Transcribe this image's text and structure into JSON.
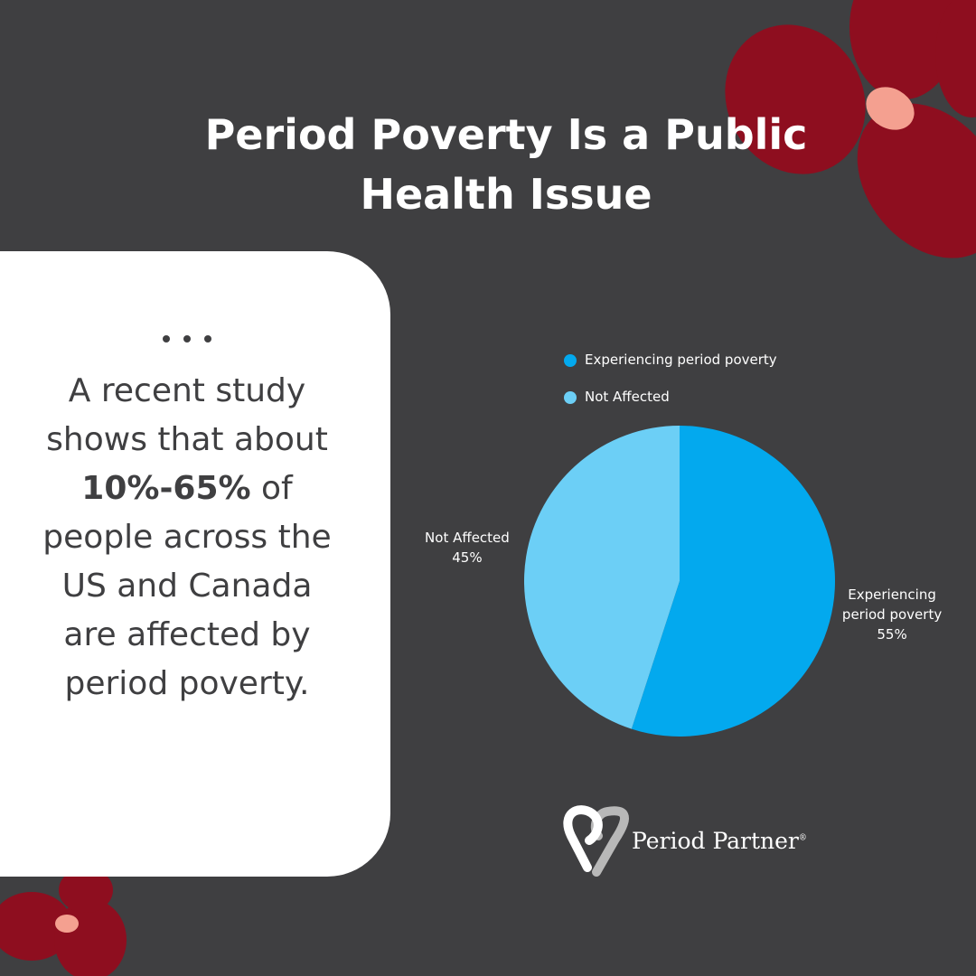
{
  "title": "Period Poverty Is a Public Health Issue",
  "card": {
    "text_before": "A recent study shows that about",
    "highlight": "10%-65%",
    "text_after": "of people across the US and Canada are affected by period poverty."
  },
  "brand": {
    "name": "Period Partner",
    "mark": "®"
  },
  "chart_data": {
    "type": "pie",
    "categories": [
      "Experiencing period poverty",
      "Not Affected"
    ],
    "values": [
      55,
      45
    ],
    "value_labels": [
      "55%",
      "45%"
    ],
    "colors": [
      "#03a9ee",
      "#6ccff6"
    ],
    "legend": "top"
  }
}
